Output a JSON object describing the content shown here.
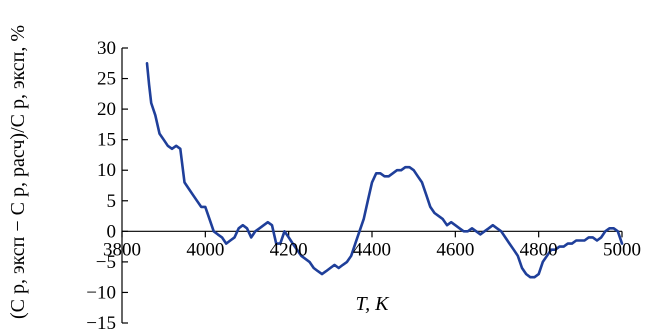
{
  "chart_data": {
    "type": "line",
    "title": "",
    "xlabel": "T, K",
    "ylabel": "(C p, эксп − C p, расч)/C p, эксп, %",
    "xlim": [
      3800,
      5000
    ],
    "ylim": [
      -15,
      30
    ],
    "x_ticks": [
      3800,
      4000,
      4200,
      4400,
      4600,
      4800,
      5000
    ],
    "y_ticks": [
      30,
      25,
      20,
      15,
      10,
      5,
      0,
      -5,
      -10,
      -15
    ],
    "y_tick_labels": [
      "30",
      "25",
      "20",
      "15",
      "10",
      "5",
      "0",
      "−5",
      "−10",
      "−15"
    ],
    "grid": false,
    "line_color": "#1f3f9a",
    "series": [
      {
        "x": [
          3860,
          3865,
          3870,
          3880,
          3890,
          3900,
          3910,
          3920,
          3930,
          3940,
          3950,
          3960,
          3970,
          3980,
          3990,
          4000,
          4010,
          4020,
          4030,
          4040,
          4050,
          4060,
          4070,
          4080,
          4090,
          4100,
          4110,
          4120,
          4130,
          4140,
          4150,
          4160,
          4170,
          4180,
          4190,
          4200,
          4210,
          4220,
          4230,
          4240,
          4250,
          4260,
          4270,
          4280,
          4290,
          4300,
          4310,
          4320,
          4330,
          4340,
          4350,
          4360,
          4370,
          4380,
          4390,
          4400,
          4410,
          4420,
          4430,
          4440,
          4450,
          4460,
          4470,
          4480,
          4490,
          4500,
          4510,
          4520,
          4530,
          4540,
          4550,
          4560,
          4570,
          4580,
          4590,
          4600,
          4610,
          4620,
          4630,
          4640,
          4650,
          4660,
          4670,
          4680,
          4690,
          4700,
          4710,
          4720,
          4730,
          4740,
          4750,
          4760,
          4770,
          4780,
          4790,
          4800,
          4810,
          4820,
          4830,
          4840,
          4850,
          4860,
          4870,
          4880,
          4890,
          4900,
          4910,
          4920,
          4930,
          4940,
          4950,
          4960,
          4970,
          4980,
          4990,
          5000
        ],
        "y": [
          27.5,
          24,
          21,
          19,
          16,
          15,
          14,
          13.5,
          14,
          13.5,
          8,
          7,
          6,
          5,
          4,
          4,
          2,
          0,
          -0.5,
          -1,
          -2,
          -1.5,
          -1,
          0.5,
          1,
          0.5,
          -1,
          0,
          0.5,
          1,
          1.5,
          1,
          -2,
          -2,
          0,
          -1,
          -2,
          -3,
          -4,
          -4.5,
          -5,
          -6,
          -6.5,
          -7,
          -6.5,
          -6,
          -5.5,
          -6,
          -5.5,
          -5,
          -4,
          -2,
          0,
          2,
          5,
          8,
          9.5,
          9.5,
          9,
          9,
          9.5,
          10,
          10,
          10.5,
          10.5,
          10,
          9,
          8,
          6,
          4,
          3,
          2.5,
          2,
          1,
          1.5,
          1,
          0.5,
          0,
          0,
          0.5,
          0,
          -0.5,
          0,
          0.5,
          1,
          0.5,
          0,
          -1,
          -2,
          -3,
          -4,
          -6,
          -7,
          -7.5,
          -7.5,
          -7,
          -5,
          -4,
          -3,
          -3,
          -2.5,
          -2.5,
          -2,
          -2,
          -1.5,
          -1.5,
          -1.5,
          -1,
          -1,
          -1.5,
          -1,
          0,
          0.5,
          0.5,
          0,
          -2
        ]
      }
    ]
  }
}
